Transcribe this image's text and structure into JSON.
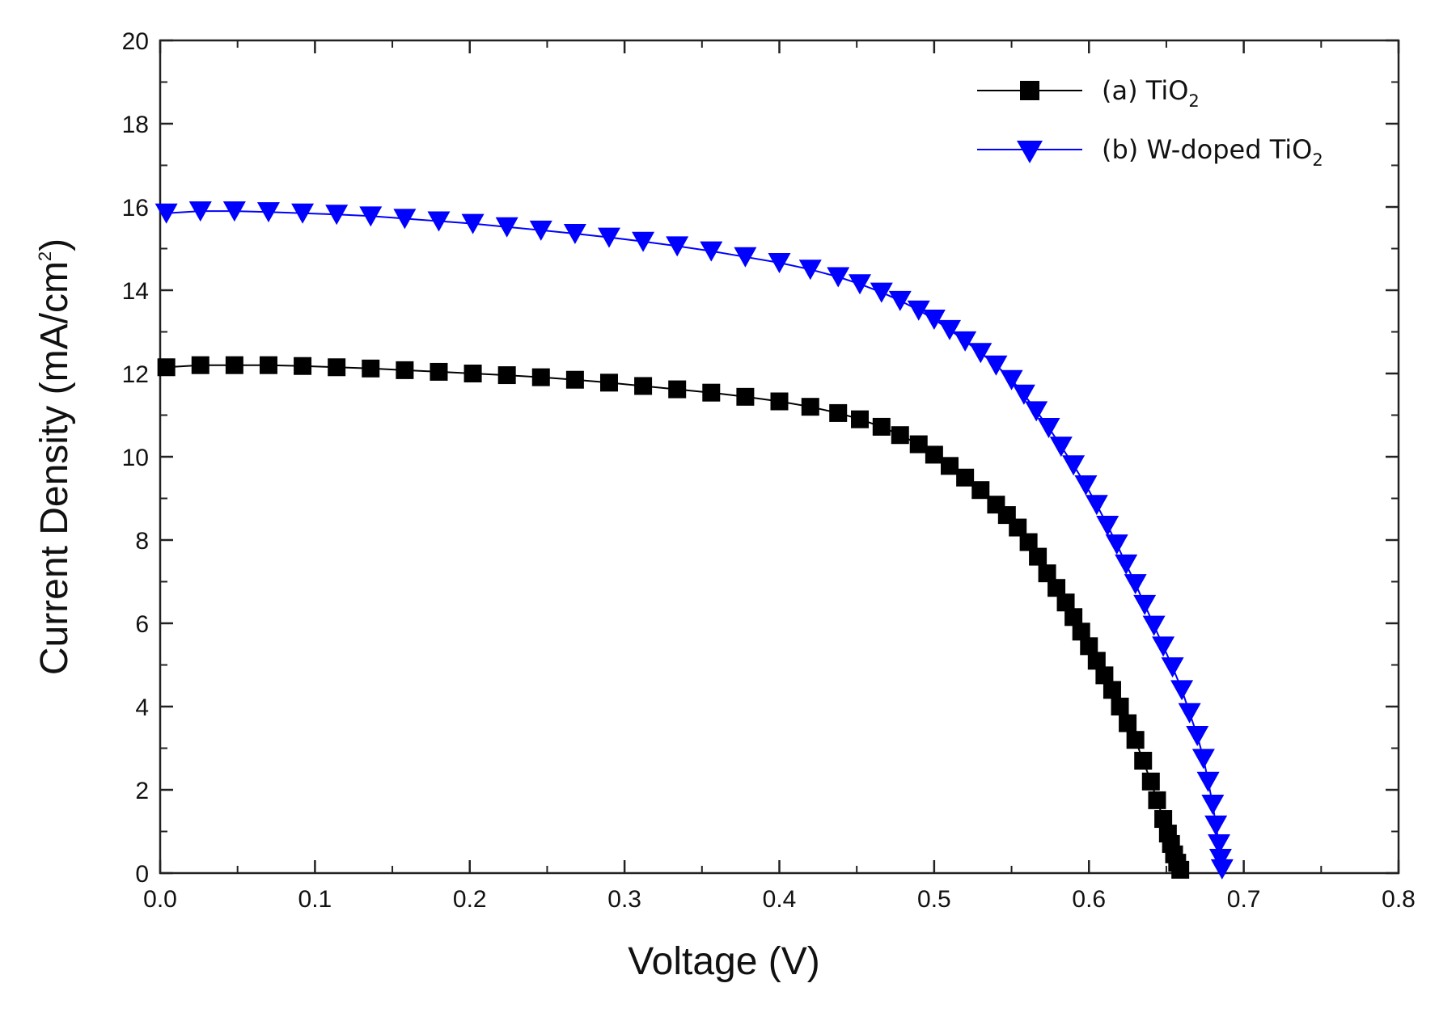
{
  "chart_data": {
    "type": "line",
    "title": "",
    "xlabel": "Voltage (V)",
    "ylabel": {
      "text": "Current Density (mA/cm",
      "sup": "2",
      "close": ")"
    },
    "xlim": [
      0.0,
      0.8
    ],
    "ylim": [
      0,
      20
    ],
    "x_ticks": [
      "0.0",
      "0.1",
      "0.2",
      "0.3",
      "0.4",
      "0.5",
      "0.6",
      "0.7",
      "0.8"
    ],
    "y_ticks": [
      "0",
      "2",
      "4",
      "6",
      "8",
      "10",
      "12",
      "14",
      "16",
      "18",
      "20"
    ],
    "grid": false,
    "legend_position": "top-right",
    "series": [
      {
        "name": {
          "prefix": "(a) TiO",
          "sub": "2",
          "suffix": ""
        },
        "color": "#000000",
        "marker": "square",
        "x": [
          0.004,
          0.026,
          0.048,
          0.07,
          0.092,
          0.114,
          0.136,
          0.158,
          0.18,
          0.202,
          0.224,
          0.246,
          0.268,
          0.29,
          0.312,
          0.334,
          0.356,
          0.378,
          0.4,
          0.42,
          0.438,
          0.452,
          0.466,
          0.478,
          0.49,
          0.5,
          0.51,
          0.52,
          0.53,
          0.54,
          0.547,
          0.554,
          0.561,
          0.567,
          0.573,
          0.579,
          0.585,
          0.59,
          0.595,
          0.6,
          0.605,
          0.61,
          0.615,
          0.62,
          0.625,
          0.63,
          0.635,
          0.64,
          0.644,
          0.648,
          0.651,
          0.653,
          0.655,
          0.657,
          0.659
        ],
        "y": [
          12.15,
          12.2,
          12.2,
          12.2,
          12.18,
          12.15,
          12.12,
          12.08,
          12.04,
          12.0,
          11.96,
          11.91,
          11.85,
          11.78,
          11.7,
          11.62,
          11.54,
          11.44,
          11.33,
          11.2,
          11.05,
          10.9,
          10.72,
          10.52,
          10.3,
          10.05,
          9.78,
          9.5,
          9.2,
          8.85,
          8.6,
          8.3,
          7.95,
          7.6,
          7.2,
          6.85,
          6.5,
          6.15,
          5.8,
          5.45,
          5.1,
          4.75,
          4.4,
          4.0,
          3.6,
          3.2,
          2.7,
          2.2,
          1.75,
          1.3,
          0.95,
          0.7,
          0.45,
          0.25,
          0.08
        ]
      },
      {
        "name": {
          "prefix": "(b) W-doped TiO",
          "sub": "2",
          "suffix": ""
        },
        "color": "#0000ff",
        "marker": "triangle-down",
        "x": [
          0.004,
          0.026,
          0.048,
          0.07,
          0.092,
          0.114,
          0.136,
          0.158,
          0.18,
          0.202,
          0.224,
          0.246,
          0.268,
          0.29,
          0.312,
          0.334,
          0.356,
          0.378,
          0.4,
          0.42,
          0.438,
          0.452,
          0.466,
          0.478,
          0.49,
          0.5,
          0.51,
          0.52,
          0.53,
          0.54,
          0.55,
          0.558,
          0.566,
          0.574,
          0.582,
          0.59,
          0.598,
          0.605,
          0.612,
          0.618,
          0.624,
          0.63,
          0.636,
          0.642,
          0.648,
          0.654,
          0.66,
          0.665,
          0.67,
          0.674,
          0.677,
          0.68,
          0.682,
          0.684,
          0.685,
          0.686
        ],
        "y": [
          15.85,
          15.9,
          15.9,
          15.88,
          15.85,
          15.82,
          15.78,
          15.72,
          15.66,
          15.6,
          15.52,
          15.44,
          15.36,
          15.27,
          15.17,
          15.06,
          14.94,
          14.8,
          14.66,
          14.5,
          14.32,
          14.15,
          13.95,
          13.75,
          13.52,
          13.3,
          13.05,
          12.78,
          12.5,
          12.2,
          11.85,
          11.5,
          11.1,
          10.7,
          10.25,
          9.8,
          9.32,
          8.85,
          8.35,
          7.9,
          7.42,
          6.95,
          6.45,
          5.95,
          5.45,
          4.95,
          4.4,
          3.85,
          3.3,
          2.75,
          2.2,
          1.65,
          1.15,
          0.7,
          0.35,
          0.1
        ]
      }
    ]
  }
}
